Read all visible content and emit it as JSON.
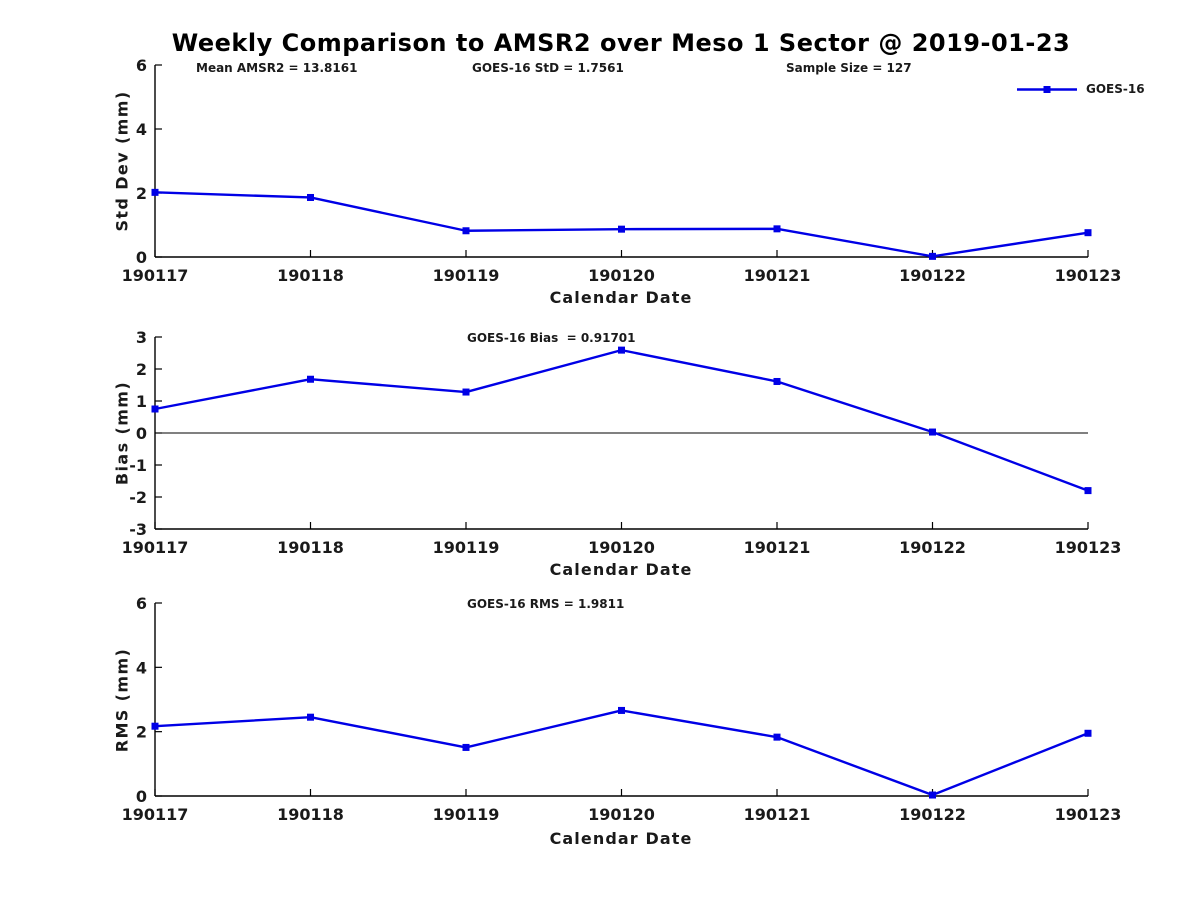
{
  "title": "Weekly Comparison to AMSR2 over Meso 1 Sector @ 2019-01-23",
  "legend": {
    "label": "GOES-16"
  },
  "colors": {
    "series": "#0000E6",
    "axis": "#000000",
    "tick_text": "#1a1a1a"
  },
  "chart_data": [
    {
      "type": "line",
      "name": "std-dev",
      "title": "",
      "ylabel": "Std Dev (mm)",
      "xlabel": "Calendar Date",
      "ylim": [
        0,
        6
      ],
      "yticks": [
        0,
        2,
        4,
        6
      ],
      "grid": false,
      "legend_position": "top-right",
      "x": [
        "190117",
        "190118",
        "190119",
        "190120",
        "190121",
        "190122",
        "190123"
      ],
      "series": [
        {
          "name": "GOES-16",
          "values": [
            2.02,
            1.86,
            0.82,
            0.87,
            0.88,
            0.02,
            0.76
          ]
        }
      ],
      "annotations": [
        "Mean AMSR2 = 13.8161",
        "GOES-16 StD = 1.7561",
        "Sample Size = 127"
      ]
    },
    {
      "type": "line",
      "name": "bias",
      "title": "",
      "ylabel": "Bias (mm)",
      "xlabel": "Calendar Date",
      "ylim": [
        -3,
        3
      ],
      "yticks": [
        3,
        2,
        1,
        0,
        -1,
        -2,
        -3
      ],
      "zero_line": true,
      "grid": false,
      "x": [
        "190117",
        "190118",
        "190119",
        "190120",
        "190121",
        "190122",
        "190123"
      ],
      "series": [
        {
          "name": "GOES-16",
          "values": [
            0.75,
            1.68,
            1.28,
            2.59,
            1.61,
            0.03,
            -1.8
          ]
        }
      ],
      "annotations": [
        "GOES-16 Bias  = 0.91701"
      ]
    },
    {
      "type": "line",
      "name": "rms",
      "title": "",
      "ylabel": "RMS (mm)",
      "xlabel": "Calendar Date",
      "ylim": [
        0,
        6
      ],
      "yticks": [
        0,
        2,
        4,
        6
      ],
      "grid": false,
      "x": [
        "190117",
        "190118",
        "190119",
        "190120",
        "190121",
        "190122",
        "190123"
      ],
      "series": [
        {
          "name": "GOES-16",
          "values": [
            2.17,
            2.45,
            1.51,
            2.66,
            1.83,
            0.03,
            1.95
          ]
        }
      ],
      "annotations": [
        "GOES-16 RMS = 1.9811"
      ]
    }
  ]
}
